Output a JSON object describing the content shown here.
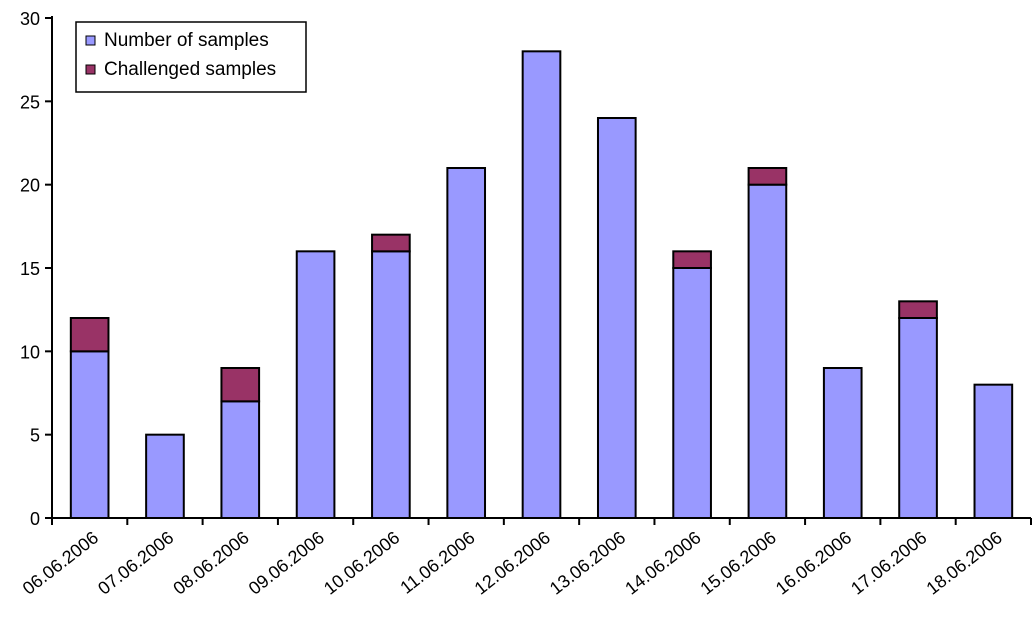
{
  "chart_data": {
    "type": "bar",
    "stacked": true,
    "title": "",
    "xlabel": "",
    "ylabel": "",
    "categories": [
      "06.06.2006",
      "07.06.2006",
      "08.06.2006",
      "09.06.2006",
      "10.06.2006",
      "11.06.2006",
      "12.06.2006",
      "13.06.2006",
      "14.06.2006",
      "15.06.2006",
      "16.06.2006",
      "17.06.2006",
      "18.06.2006"
    ],
    "series": [
      {
        "name": "Number of samples",
        "color": "#9999ff",
        "values": [
          10,
          5,
          7,
          16,
          16,
          21,
          28,
          24,
          15,
          20,
          9,
          12,
          8
        ]
      },
      {
        "name": "Challenged samples",
        "color": "#993366",
        "values": [
          2,
          0,
          2,
          0,
          1,
          0,
          0,
          0,
          1,
          1,
          0,
          1,
          0
        ]
      }
    ],
    "ylim": [
      0,
      30
    ],
    "yticks": [
      0,
      5,
      10,
      15,
      20,
      25,
      30
    ],
    "grid": false,
    "legend_position": "top-left"
  }
}
